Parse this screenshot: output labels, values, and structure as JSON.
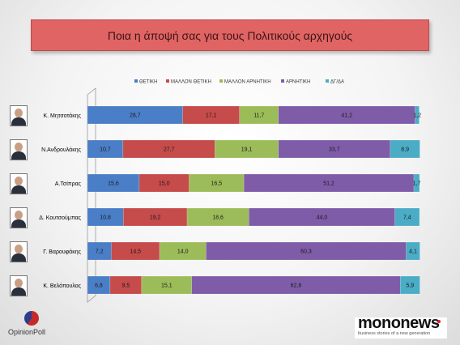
{
  "chart_data": {
    "type": "bar",
    "orientation": "horizontal",
    "stacked": true,
    "title": "Ποια η άποψή σας για τους Πολιτικούς αρχηγούς",
    "categories": [
      "Κ. Μητσοτάκης",
      "Ν.Ανδρουλάκης",
      "Α.Τσίπρας",
      "Δ. Κουτσούμπας",
      "Γ. Βαρουφάκης",
      "Κ. Βελόπουλος"
    ],
    "series": [
      {
        "name": "ΘΕΤΙΚΗ",
        "color": "#4a7fc7",
        "values": [
          28.7,
          10.7,
          15.6,
          10.8,
          7.2,
          6.8
        ],
        "labels": [
          "28,7",
          "10,7",
          "15,6",
          "10,8",
          "7,2",
          "6,8"
        ]
      },
      {
        "name": "ΜΑΛΛΟΝ ΘΕΤΙΚΗ",
        "color": "#c64b4b",
        "values": [
          17.1,
          27.7,
          15.0,
          19.2,
          14.5,
          9.5
        ],
        "labels": [
          "17,1",
          "27,7",
          "15,0",
          "19,2",
          "14,5",
          "9,5"
        ]
      },
      {
        "name": "ΜΑΛΛΟΝ ΑΡΝΗΤΙΚΗ",
        "color": "#9cbc59",
        "values": [
          11.7,
          19.1,
          16.5,
          18.6,
          14.0,
          15.1
        ],
        "labels": [
          "11,7",
          "19,1",
          "16,5",
          "18,6",
          "14,0",
          "15,1"
        ]
      },
      {
        "name": "ΑΡΝΗΤΙΚΗ",
        "color": "#7f5ca8",
        "values": [
          41.2,
          33.7,
          51.2,
          44.0,
          60.3,
          62.8
        ],
        "labels": [
          "41,2",
          "33,7",
          "51,2",
          "44,0",
          "60,3",
          "62,8"
        ]
      },
      {
        "name": "ΔΓ/ΔΑ",
        "color": "#4bacc6",
        "values": [
          1.2,
          8.9,
          1.7,
          7.4,
          4.1,
          5.9
        ],
        "labels": [
          "1,2",
          "8,9",
          "1,7",
          "7,4",
          "4,1",
          "5,9"
        ]
      }
    ],
    "xlim": [
      0,
      100
    ],
    "legend_position": "top",
    "grid": false
  },
  "logos": {
    "left_text": "OpinionPoll",
    "right_word": "mononews",
    "right_tagline": "business stories of a new generation"
  }
}
